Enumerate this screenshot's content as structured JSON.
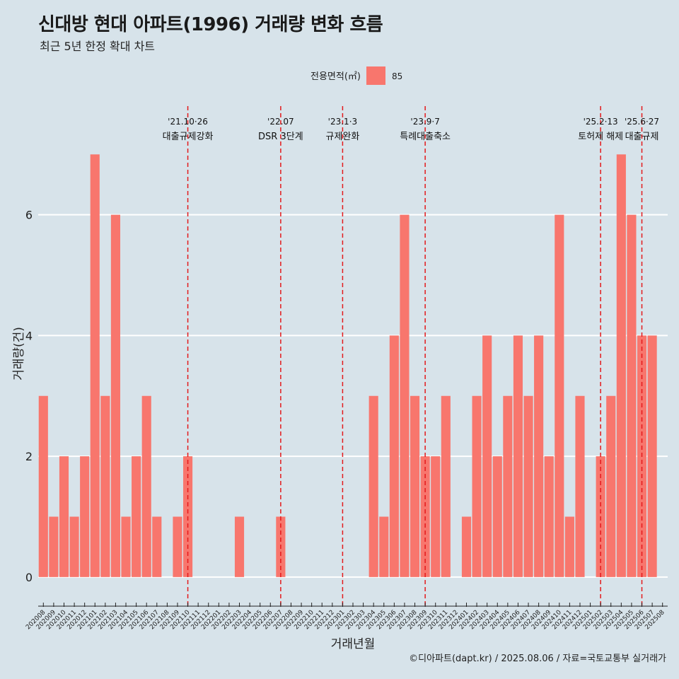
{
  "header": {
    "title": "신대방 현대 아파트(1996) 거래량 변화 흐름",
    "subtitle": "최근 5년 한정 확대 차트"
  },
  "footer": {
    "caption": "©디아파트(dapt.kr) / 2025.08.06 / 자료=국토교통부 실거래가"
  },
  "colors": {
    "background": "#d7e3ea",
    "bar": "#f8766d",
    "gridline": "#ffffff",
    "event_line": "#e31a1c"
  },
  "chart_data": {
    "type": "bar",
    "xlabel": "거래년월",
    "ylabel": "거래량(건)",
    "ylim": [
      -0.4,
      7.8
    ],
    "yticks": [
      0,
      2,
      4,
      6
    ],
    "grid": "horizontal, white",
    "legend": {
      "title": "전용면적(㎡)",
      "position": "top"
    },
    "categories": [
      "202008",
      "202009",
      "202010",
      "202011",
      "202012",
      "202101",
      "202102",
      "202103",
      "202104",
      "202105",
      "202106",
      "202107",
      "202108",
      "202109",
      "202110",
      "202111",
      "202112",
      "202201",
      "202202",
      "202203",
      "202204",
      "202205",
      "202206",
      "202207",
      "202208",
      "202209",
      "202210",
      "202211",
      "202212",
      "202301",
      "202302",
      "202303",
      "202304",
      "202305",
      "202306",
      "202307",
      "202308",
      "202309",
      "202310",
      "202311",
      "202312",
      "202401",
      "202402",
      "202403",
      "202404",
      "202405",
      "202406",
      "202407",
      "202408",
      "202409",
      "202410",
      "202411",
      "202412",
      "202501",
      "202502",
      "202503",
      "202504",
      "202505",
      "202506",
      "202507",
      "202508"
    ],
    "series": [
      {
        "name": "85",
        "color": "#f8766d",
        "values": [
          3,
          1,
          2,
          1,
          2,
          7,
          3,
          6,
          1,
          2,
          3,
          1,
          0,
          1,
          2,
          0,
          0,
          0,
          0,
          1,
          0,
          0,
          0,
          1,
          0,
          0,
          0,
          0,
          0,
          0,
          0,
          0,
          3,
          1,
          4,
          6,
          3,
          2,
          2,
          3,
          0,
          1,
          3,
          4,
          2,
          3,
          4,
          3,
          4,
          2,
          6,
          1,
          3,
          0,
          2,
          3,
          7,
          6,
          4,
          4,
          0
        ]
      }
    ],
    "annotations": [
      {
        "x": "202110",
        "date": "'21.10·26",
        "label": "대출규제강화"
      },
      {
        "x": "202207",
        "date": "'22.07",
        "label": "DSR 3단계"
      },
      {
        "x": "202301",
        "date": "'23.1·3",
        "label": "규제완화"
      },
      {
        "x": "202309",
        "date": "'23.9·7",
        "label": "특례대출축소"
      },
      {
        "x": "202502",
        "date": "'25.2·13",
        "label": "토허제 해제"
      },
      {
        "x": "202506",
        "date": "'25.6·27",
        "label": "대출규제"
      }
    ]
  }
}
